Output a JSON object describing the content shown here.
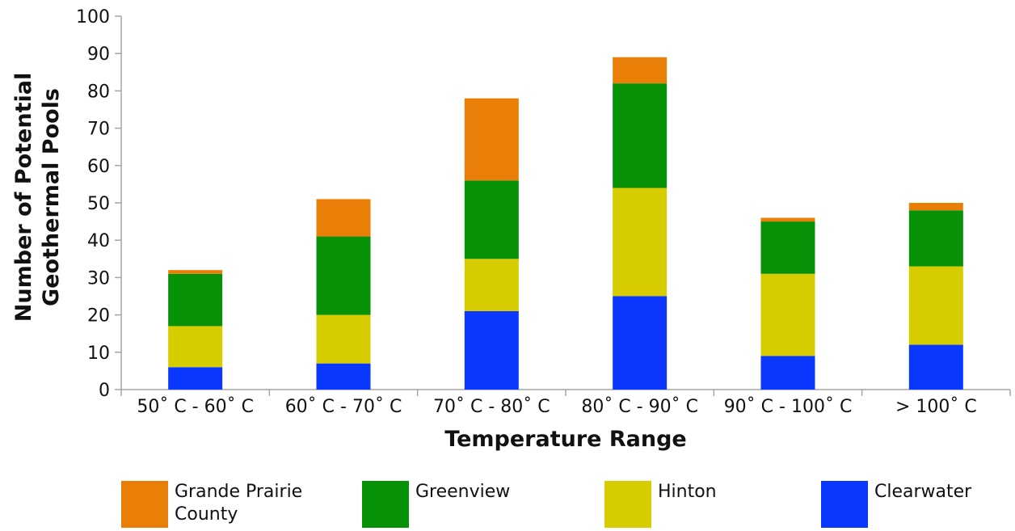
{
  "chart_data": {
    "type": "bar",
    "stacked": true,
    "categories": [
      "50˚ C - 60˚ C",
      "60˚ C - 70˚ C",
      "70˚ C - 80˚ C",
      "80˚ C - 90˚ C",
      "90˚ C - 100˚ C",
      "> 100˚ C"
    ],
    "series": [
      {
        "name": "Clearwater",
        "color": "#0a38ff",
        "values": [
          6,
          7,
          21,
          25,
          9,
          12
        ]
      },
      {
        "name": "Hinton",
        "color": "#d6cc00",
        "values": [
          11,
          13,
          14,
          29,
          22,
          21
        ]
      },
      {
        "name": "Greenview",
        "color": "#069106",
        "values": [
          14,
          21,
          21,
          28,
          14,
          15
        ]
      },
      {
        "name": "Grande Prairie County",
        "color": "#ea7f07",
        "values": [
          1,
          10,
          22,
          7,
          1,
          2
        ]
      }
    ],
    "xlabel": "Temperature Range",
    "ylabel": [
      "Number of Potential",
      "Geothermal Pools"
    ],
    "ylim": [
      0,
      100
    ],
    "yticks": [
      0,
      10,
      20,
      30,
      40,
      50,
      60,
      70,
      80,
      90,
      100
    ],
    "grid": false,
    "legend_position": "bottom"
  },
  "legend": [
    {
      "label_lines": [
        "Grande Prairie",
        "County"
      ],
      "color": "#ea7f07"
    },
    {
      "label_lines": [
        "Greenview"
      ],
      "color": "#069106"
    },
    {
      "label_lines": [
        "Hinton"
      ],
      "color": "#d6cc00"
    },
    {
      "label_lines": [
        "Clearwater"
      ],
      "color": "#0a38ff"
    }
  ]
}
